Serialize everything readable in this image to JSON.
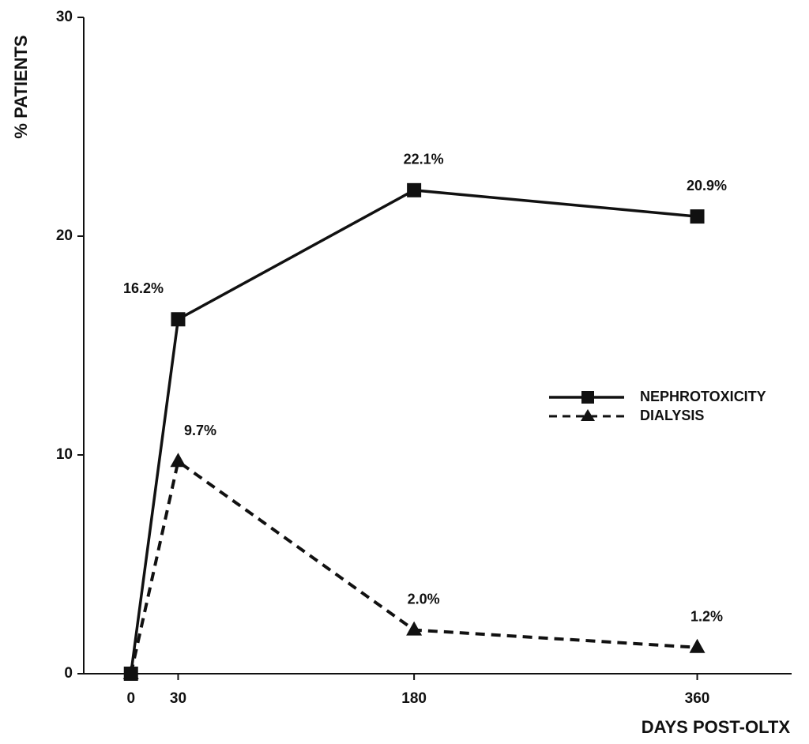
{
  "chart_data": {
    "type": "line",
    "y_label": "% PATIENTS",
    "x_label": "DAYS POST-OLTX",
    "x": [
      0,
      30,
      180,
      360
    ],
    "xlim": [
      -30,
      420
    ],
    "xticks": [
      0,
      30,
      180,
      360
    ],
    "ylim": [
      0,
      30
    ],
    "yticks": [
      0,
      10,
      20,
      30
    ],
    "legend": "right",
    "series": [
      {
        "name": "NEPHROTOXICITY",
        "color": "#111111",
        "style": "solid",
        "marker": "square",
        "values": [
          0,
          16.2,
          22.1,
          20.9
        ],
        "value_labels": [
          null,
          "16.2%",
          "22.1%",
          "20.9%"
        ]
      },
      {
        "name": "DIALYSIS",
        "color": "#111111",
        "style": "dashed",
        "marker": "triangle",
        "values": [
          0,
          9.7,
          2.0,
          1.2
        ],
        "value_labels": [
          null,
          "9.7%",
          "2.0%",
          "1.2%"
        ]
      }
    ]
  }
}
